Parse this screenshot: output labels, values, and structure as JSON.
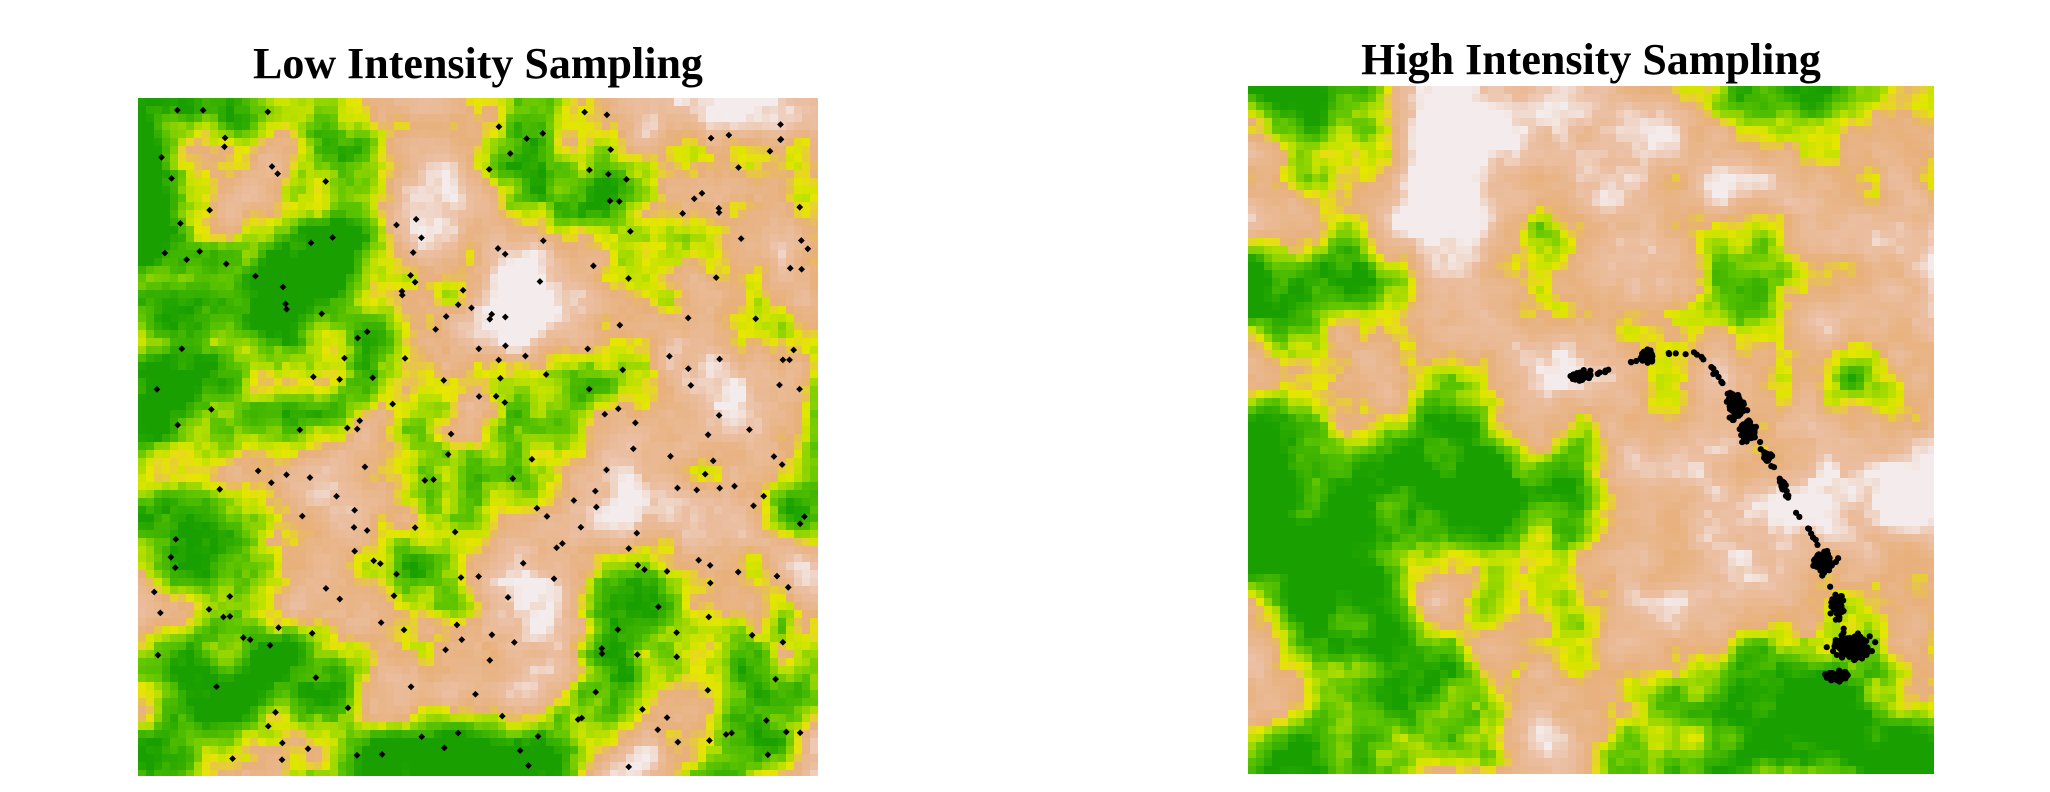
{
  "panels": [
    {
      "title": "Low Intensity Sampling",
      "sampling": "dispersed random points across the whole landscape"
    },
    {
      "title": "High Intensity Sampling",
      "sampling": "points concentrated along a path with dense clusters"
    }
  ],
  "colors": {
    "background": "#ffffff",
    "terrain_dark_green": "#19a000",
    "terrain_green": "#5cc400",
    "terrain_yellow_green": "#b8e000",
    "terrain_yellow": "#e6e600",
    "terrain_tan": "#e8b07a",
    "terrain_pink": "#ebbfa3",
    "terrain_white": "#f4ecec",
    "points": "#000000"
  }
}
